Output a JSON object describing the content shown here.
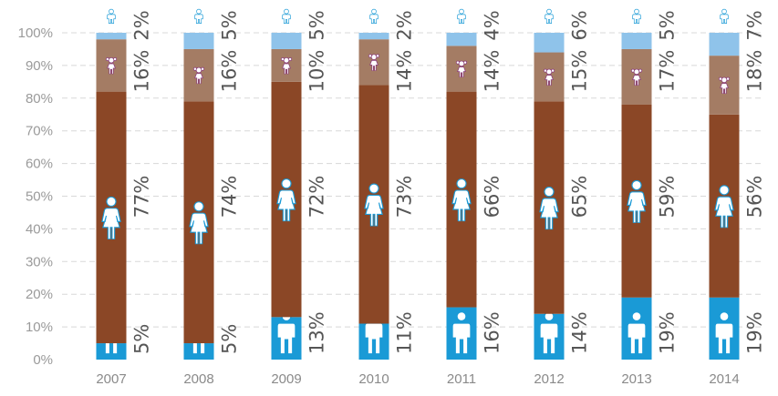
{
  "chart_data": {
    "type": "bar",
    "stacked": true,
    "ylim": [
      0,
      100
    ],
    "grid": true,
    "y_ticks": [
      "0%",
      "10%",
      "20%",
      "30%",
      "40%",
      "50%",
      "60%",
      "70%",
      "80%",
      "90%",
      "100%"
    ],
    "categories": [
      "2007",
      "2008",
      "2009",
      "2010",
      "2011",
      "2012",
      "2013",
      "2014"
    ],
    "series": [
      {
        "key": "men",
        "color": "#1a9ad6",
        "icon": "man-icon",
        "values": [
          5,
          5,
          13,
          11,
          16,
          14,
          19,
          19
        ],
        "labels": [
          "5%",
          "5%",
          "13%",
          "11%",
          "16%",
          "14%",
          "19%",
          "19%"
        ]
      },
      {
        "key": "women",
        "color": "#8b4726",
        "icon": "woman-icon",
        "values": [
          77,
          74,
          72,
          73,
          66,
          65,
          59,
          56
        ],
        "labels": [
          "77%",
          "74%",
          "72%",
          "73%",
          "66%",
          "65%",
          "59%",
          "56%"
        ]
      },
      {
        "key": "girls",
        "color": "#a47c64",
        "icon": "girl-icon",
        "values": [
          16,
          16,
          10,
          14,
          14,
          15,
          17,
          18
        ],
        "labels": [
          "16%",
          "16%",
          "10%",
          "14%",
          "14%",
          "15%",
          "17%",
          "18%"
        ]
      },
      {
        "key": "boys",
        "color": "#8fc3ea",
        "icon": "boy-icon",
        "values": [
          2,
          5,
          5,
          2,
          4,
          6,
          5,
          7
        ],
        "labels": [
          "2%",
          "5%",
          "5%",
          "2%",
          "4%",
          "6%",
          "5%",
          "7%"
        ]
      }
    ]
  }
}
